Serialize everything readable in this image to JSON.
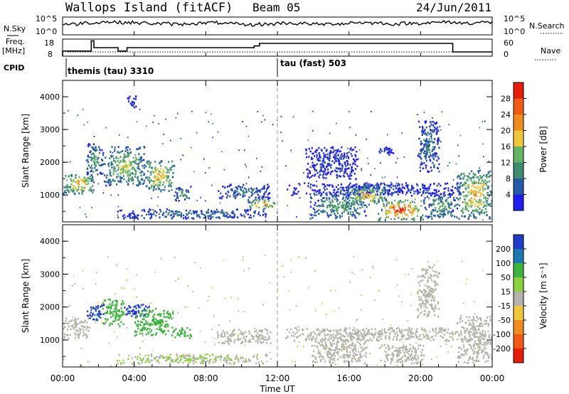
{
  "header": {
    "station": "Wallops Island (fitACF)",
    "beam": "Beam 05",
    "date": "24/Jun/2011"
  },
  "top_panels": {
    "nsky_label": "N.Sky",
    "nsky_ticks": [
      "10^5",
      "10^0"
    ],
    "nsearch_label": "N.Search",
    "nsearch_ticks": [
      "10^5",
      "10^0"
    ],
    "freq_label": "Freq.",
    "freq_unit": "[MHz]",
    "freq_ticks": [
      "18",
      "8"
    ],
    "nave_label": "Nave",
    "nave_ticks": [
      "60",
      "0"
    ],
    "cpid_label": "CPID",
    "cpid_modes": [
      {
        "label": "themis (tau) 3310",
        "start_hour": 0
      },
      {
        "label": "tau (fast) 503",
        "start_hour": 12
      }
    ]
  },
  "axes": {
    "xlabel": "Time UT",
    "x_ticks": [
      "00:00",
      "04:00",
      "08:00",
      "12:00",
      "16:00",
      "20:00",
      "00:00"
    ],
    "ylabel": "Slant Range [km]",
    "y_ticks": [
      "1000",
      "2000",
      "3000",
      "4000"
    ]
  },
  "power_scale": {
    "label": "Power [dB]",
    "ticks": [
      "4",
      "8",
      "12",
      "16",
      "20",
      "24",
      "28"
    ],
    "colors": [
      "#1e1ef0",
      "#2458a8",
      "#3c8c6e",
      "#64b464",
      "#f0c83c",
      "#f08c1e",
      "#f05a14",
      "#e61e0a"
    ]
  },
  "velocity_scale": {
    "label": "Velocity [m s⁻¹]",
    "ticks": [
      "200",
      "100",
      "50",
      "15",
      "-15",
      "-50",
      "-100",
      "-200"
    ],
    "colors": [
      "#1e3cc8",
      "#1e78b4",
      "#3cb43c",
      "#8cd23c",
      "#b4b4aa",
      "#f0c83c",
      "#f08c1e",
      "#f05a14",
      "#e61e0a"
    ]
  },
  "chart_data": {
    "type": "heatmap",
    "title": "Wallops Island (fitACF)",
    "x_range_hours": [
      0,
      24
    ],
    "y_range_km": [
      180,
      4500
    ],
    "panels": [
      {
        "name": "Power [dB]",
        "regions": [
          {
            "t0": 0.0,
            "t1": 1.8,
            "r0": 1050,
            "r1": 1700,
            "level": 20
          },
          {
            "t0": 1.3,
            "t1": 2.3,
            "r0": 1600,
            "r1": 2600,
            "level": 12
          },
          {
            "t0": 2.3,
            "t1": 4.6,
            "r0": 1300,
            "r1": 2500,
            "level": 16
          },
          {
            "t0": 4.6,
            "t1": 6.2,
            "r0": 1150,
            "r1": 2100,
            "level": 20
          },
          {
            "t0": 6.2,
            "t1": 7.2,
            "r0": 850,
            "r1": 1300,
            "level": 12
          },
          {
            "t0": 3.6,
            "t1": 4.1,
            "r0": 3700,
            "r1": 4050,
            "level": 4
          },
          {
            "t0": 3.0,
            "t1": 11.5,
            "r0": 300,
            "r1": 600,
            "level": 8
          },
          {
            "t0": 8.6,
            "t1": 11.6,
            "r0": 900,
            "r1": 1350,
            "level": 8
          },
          {
            "t0": 10.3,
            "t1": 11.9,
            "r0": 600,
            "r1": 900,
            "level": 24
          },
          {
            "t0": 12.4,
            "t1": 22.3,
            "r0": 1000,
            "r1": 1400,
            "level": 4
          },
          {
            "t0": 13.8,
            "t1": 17.0,
            "r0": 300,
            "r1": 1100,
            "level": 12
          },
          {
            "t0": 15.8,
            "t1": 18.2,
            "r0": 700,
            "r1": 1300,
            "level": 20
          },
          {
            "t0": 17.6,
            "t1": 20.2,
            "r0": 250,
            "r1": 900,
            "level": 28
          },
          {
            "t0": 20.2,
            "t1": 22.0,
            "r0": 300,
            "r1": 1100,
            "level": 12
          },
          {
            "t0": 22.0,
            "t1": 24.0,
            "r0": 300,
            "r1": 1800,
            "level": 20
          },
          {
            "t0": 19.8,
            "t1": 21.0,
            "r0": 1700,
            "r1": 3300,
            "level": 8
          },
          {
            "t0": 13.5,
            "t1": 16.5,
            "r0": 1500,
            "r1": 2500,
            "level": 4
          },
          {
            "t0": 17.5,
            "t1": 18.5,
            "r0": 2250,
            "r1": 2500,
            "level": 4
          }
        ]
      },
      {
        "name": "Velocity [m s-1]",
        "regions": [
          {
            "t0": 0.0,
            "t1": 1.5,
            "r0": 1050,
            "r1": 1700,
            "level": 0
          },
          {
            "t0": 1.3,
            "t1": 2.3,
            "r0": 1600,
            "r1": 2100,
            "level": 200
          },
          {
            "t0": 2.2,
            "t1": 3.4,
            "r0": 1400,
            "r1": 2300,
            "level": 50
          },
          {
            "t0": 3.4,
            "t1": 4.8,
            "r0": 1700,
            "r1": 2100,
            "level": 200
          },
          {
            "t0": 4.0,
            "t1": 6.2,
            "r0": 1150,
            "r1": 2000,
            "level": 50
          },
          {
            "t0": 6.2,
            "t1": 7.2,
            "r0": 1050,
            "r1": 1400,
            "level": 50
          },
          {
            "t0": 3.0,
            "t1": 11.5,
            "r0": 300,
            "r1": 600,
            "level": 15
          },
          {
            "t0": 8.6,
            "t1": 11.6,
            "r0": 900,
            "r1": 1350,
            "level": 0
          },
          {
            "t0": 12.4,
            "t1": 22.3,
            "r0": 1000,
            "r1": 1400,
            "level": 0
          },
          {
            "t0": 13.8,
            "t1": 17.0,
            "r0": 300,
            "r1": 1100,
            "level": 0
          },
          {
            "t0": 17.6,
            "t1": 20.2,
            "r0": 300,
            "r1": 900,
            "level": 0
          },
          {
            "t0": 22.0,
            "t1": 24.0,
            "r0": 300,
            "r1": 1800,
            "level": 0
          },
          {
            "t0": 19.8,
            "t1": 21.0,
            "r0": 1700,
            "r1": 3300,
            "level": 0
          }
        ]
      }
    ],
    "nsky_profile": [
      3,
      3.5,
      3.8,
      3.6,
      3.4,
      3.2,
      3.0,
      3.3,
      3.5,
      3.1,
      2.8,
      3.0,
      3.4,
      3.2,
      3.0,
      3.2,
      3.6,
      3.4,
      3.1,
      3.3,
      3.5,
      3.7,
      3.4,
      3.6,
      3.8
    ],
    "freq_steps": [
      {
        "t0": 0.0,
        "t1": 1.6,
        "mhz": 11
      },
      {
        "t0": 1.6,
        "t1": 1.75,
        "mhz": 17
      },
      {
        "t0": 1.75,
        "t1": 3.1,
        "mhz": 13
      },
      {
        "t0": 3.1,
        "t1": 3.6,
        "mhz": 11
      },
      {
        "t0": 3.6,
        "t1": 10.7,
        "mhz": 13
      },
      {
        "t0": 10.7,
        "t1": 11.0,
        "mhz": 14
      },
      {
        "t0": 11.0,
        "t1": 21.8,
        "mhz": 15.5
      },
      {
        "t0": 21.8,
        "t1": 24.0,
        "mhz": 10.5
      }
    ]
  }
}
